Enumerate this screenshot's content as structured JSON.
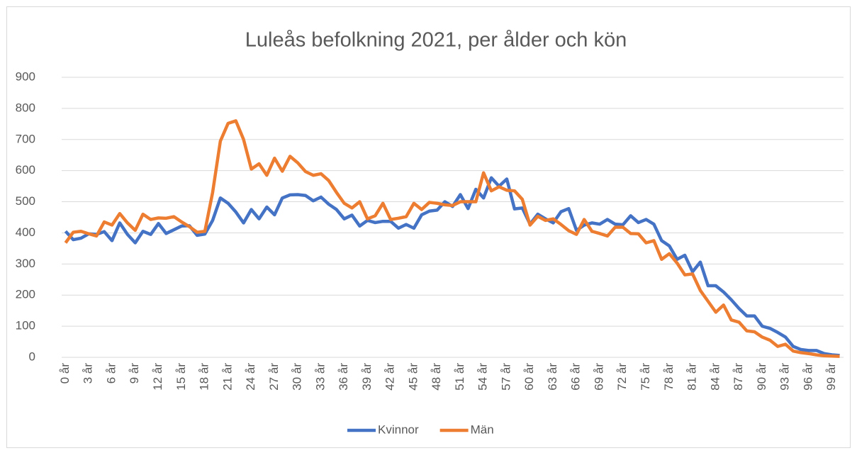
{
  "chart_data": {
    "type": "line",
    "title": "Luleås befolkning 2021, per ålder och kön",
    "categories": [
      "0 år",
      null,
      null,
      "3 år",
      null,
      null,
      "6 år",
      null,
      null,
      "9 år",
      null,
      null,
      "12 år",
      null,
      null,
      "15 år",
      null,
      null,
      "18 år",
      null,
      null,
      "21 år",
      null,
      null,
      "24 år",
      null,
      null,
      "27 år",
      null,
      null,
      "30 år",
      null,
      null,
      "33 år",
      null,
      null,
      "36 år",
      null,
      null,
      "39 år",
      null,
      null,
      "42 år",
      null,
      null,
      "45 år",
      null,
      null,
      "48 år",
      null,
      null,
      "51 år",
      null,
      null,
      "54 år",
      null,
      null,
      "57 år",
      null,
      null,
      "60 år",
      null,
      null,
      "63 år",
      null,
      null,
      "66 år",
      null,
      null,
      "69 år",
      null,
      null,
      "72 år",
      null,
      null,
      "75 år",
      null,
      null,
      "78 år",
      null,
      null,
      "81 år",
      null,
      null,
      "84 år",
      null,
      null,
      "87 år",
      null,
      null,
      "90 år",
      null,
      null,
      "93 år",
      null,
      null,
      "96 år",
      null,
      null,
      "99 år",
      null
    ],
    "series": [
      {
        "name": "Kvinnor",
        "color": "#4472c4",
        "values": [
          405,
          378,
          383,
          397,
          395,
          404,
          375,
          432,
          395,
          368,
          405,
          395,
          430,
          398,
          410,
          422,
          423,
          392,
          396,
          440,
          512,
          495,
          467,
          432,
          475,
          445,
          483,
          458,
          512,
          522,
          523,
          520,
          503,
          515,
          492,
          475,
          445,
          457,
          422,
          440,
          433,
          437,
          437,
          415,
          427,
          415,
          458,
          470,
          473,
          500,
          485,
          523,
          478,
          540,
          512,
          577,
          550,
          573,
          477,
          480,
          428,
          460,
          445,
          432,
          468,
          478,
          408,
          425,
          432,
          428,
          443,
          428,
          426,
          455,
          433,
          443,
          428,
          375,
          358,
          315,
          328,
          275,
          306,
          230,
          230,
          210,
          185,
          157,
          133,
          133,
          100,
          93,
          80,
          65,
          35,
          25,
          22,
          22,
          12,
          8,
          6
        ]
      },
      {
        "name": "Män",
        "color": "#ed7d31",
        "values": [
          368,
          402,
          405,
          397,
          390,
          435,
          425,
          462,
          432,
          408,
          460,
          443,
          448,
          447,
          452,
          435,
          420,
          402,
          405,
          530,
          695,
          752,
          760,
          700,
          605,
          622,
          585,
          640,
          598,
          646,
          625,
          597,
          585,
          590,
          568,
          530,
          495,
          480,
          500,
          445,
          455,
          495,
          443,
          447,
          452,
          495,
          475,
          498,
          495,
          490,
          488,
          500,
          500,
          500,
          593,
          535,
          548,
          537,
          535,
          508,
          425,
          453,
          440,
          445,
          427,
          407,
          395,
          443,
          405,
          398,
          390,
          418,
          418,
          398,
          397,
          368,
          375,
          315,
          333,
          303,
          265,
          268,
          215,
          180,
          145,
          168,
          120,
          113,
          85,
          82,
          65,
          55,
          35,
          42,
          20,
          15,
          12,
          8,
          5,
          4,
          3
        ]
      }
    ],
    "ylim": [
      0,
      900
    ],
    "yticks": [
      0,
      100,
      200,
      300,
      400,
      500,
      600,
      700,
      800,
      900
    ],
    "grid": true,
    "legend": "bottom"
  }
}
